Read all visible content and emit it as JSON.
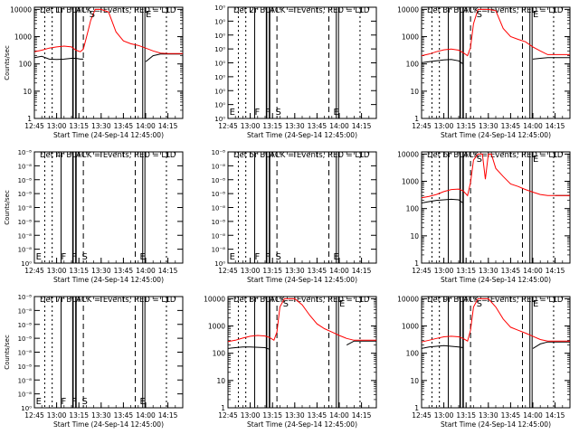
{
  "chart_data": [
    {
      "type": "line",
      "title": "Det 1r BLACK = Events, RED = LLD",
      "xlabel": "Start Time (24-Sep-14 12:45:00)",
      "ylabel": "Counts/sec",
      "xlim": [
        "12:45",
        "14:25"
      ],
      "ylim": [
        1,
        12000
      ],
      "log_y": true,
      "y_tick_labels": [
        "1",
        "10",
        "100",
        "1000",
        "10000"
      ],
      "x_tick_labels": [
        "12:45",
        "13:00",
        "13:15",
        "13:30",
        "13:45",
        "14:00",
        "14:15"
      ],
      "has_data": true,
      "x": [
        "12:45",
        "12:50",
        "12:55",
        "13:00",
        "13:05",
        "13:10",
        "13:13",
        "13:16",
        "13:18",
        "13:20",
        "13:23",
        "13:26",
        "13:30",
        "13:35",
        "13:40",
        "13:45",
        "13:50",
        "13:55",
        "14:00",
        "14:05",
        "14:10",
        "14:15",
        "14:20",
        "14:25"
      ],
      "series": [
        {
          "color": "#000000",
          "values": [
            170,
            190,
            150,
            145,
            150,
            160,
            160,
            150,
            150,
            null,
            null,
            null,
            null,
            null,
            null,
            null,
            null,
            null,
            120,
            200,
            230,
            230,
            230,
            230
          ]
        },
        {
          "color": "#ff0000",
          "values": [
            280,
            320,
            380,
            420,
            450,
            420,
            320,
            280,
            350,
            900,
            4000,
            10000,
            10000,
            8000,
            1500,
            700,
            550,
            480,
            380,
            300,
            250,
            240,
            240,
            240
          ]
        }
      ],
      "annotations": [
        {
          "text": "S",
          "x": "13:22"
        },
        {
          "text": "E",
          "x": "14:00"
        }
      ]
    },
    {
      "type": "line",
      "title": "Det 2r BLACK = Events, RED = LLD",
      "xlabel": "Start Time (24-Sep-14 12:45:00)",
      "ylabel": "",
      "xlim": [
        "12:45",
        "14:25"
      ],
      "ylim": [
        1,
        12000
      ],
      "log_y": true,
      "y_tick_labels": [
        "10⁰",
        "10⁰",
        "10⁰",
        "10⁰",
        "10⁰",
        "10⁰",
        "10⁰",
        "10⁰",
        "10⁰"
      ],
      "x_tick_labels": [
        "12:45",
        "13:00",
        "13:15",
        "13:30",
        "13:45",
        "14:00",
        "14:15"
      ],
      "has_data": false,
      "annotations": [
        {
          "text": "E",
          "x": "12:46"
        },
        {
          "text": "F",
          "x": "13:03"
        },
        {
          "text": "F",
          "x": "13:10"
        },
        {
          "text": "S",
          "x": "13:17"
        },
        {
          "text": "E",
          "x": "13:56"
        }
      ]
    },
    {
      "type": "line",
      "title": "Det 3r BLACK = Events, RED = LLD",
      "xlabel": "Start Time (24-Sep-14 12:45:00)",
      "ylabel": "",
      "xlim": [
        "12:45",
        "14:25"
      ],
      "ylim": [
        1,
        12000
      ],
      "log_y": true,
      "y_tick_labels": [
        "1",
        "10",
        "100",
        "1000",
        "10000"
      ],
      "x_tick_labels": [
        "12:45",
        "13:00",
        "13:15",
        "13:30",
        "13:45",
        "14:00",
        "14:15"
      ],
      "has_data": true,
      "x": [
        "12:45",
        "12:50",
        "12:55",
        "13:00",
        "13:05",
        "13:10",
        "13:13",
        "13:16",
        "13:18",
        "13:20",
        "13:23",
        "13:26",
        "13:30",
        "13:35",
        "13:40",
        "13:45",
        "13:50",
        "13:55",
        "14:00",
        "14:05",
        "14:10",
        "14:15",
        "14:20",
        "14:25"
      ],
      "series": [
        {
          "color": "#000000",
          "values": [
            110,
            120,
            130,
            140,
            145,
            130,
            100,
            null,
            null,
            null,
            null,
            null,
            null,
            null,
            null,
            null,
            null,
            null,
            150,
            160,
            170,
            170,
            170,
            170
          ]
        },
        {
          "color": "#ff0000",
          "values": [
            200,
            230,
            280,
            330,
            350,
            320,
            260,
            200,
            400,
            3000,
            10000,
            10000,
            10000,
            9000,
            2000,
            1000,
            800,
            650,
            420,
            300,
            220,
            220,
            220,
            220
          ]
        }
      ],
      "annotations": [
        {
          "text": "S",
          "x": "13:22"
        },
        {
          "text": "E",
          "x": "14:00"
        }
      ]
    },
    {
      "type": "line",
      "title": "Det 4r BLACK = Events, RED = LLD",
      "xlabel": "Start Time (24-Sep-14 12:45:00)",
      "ylabel": "Counts/sec",
      "xlim": [
        "12:45",
        "14:25"
      ],
      "ylim": [
        1,
        12000
      ],
      "log_y": true,
      "y_tick_labels": [
        "10⁰",
        "10⁻⁸",
        "10⁻⁸",
        "10⁻⁸",
        "10⁻⁸",
        "10⁻⁸",
        "10⁻⁸",
        "10⁻⁸",
        "10⁻⁸"
      ],
      "x_tick_labels": [
        "12:45",
        "13:00",
        "13:15",
        "13:30",
        "13:45",
        "14:00",
        "14:15"
      ],
      "has_data": false,
      "annotations": [
        {
          "text": "E",
          "x": "12:46"
        },
        {
          "text": "F",
          "x": "13:03"
        },
        {
          "text": "F",
          "x": "13:10"
        },
        {
          "text": "S",
          "x": "13:17"
        },
        {
          "text": "E",
          "x": "13:56"
        }
      ]
    },
    {
      "type": "line",
      "title": "Det 5r BLACK = Events, RED = LLD",
      "xlabel": "Start Time (24-Sep-14 12:45:00)",
      "ylabel": "",
      "xlim": [
        "12:45",
        "14:25"
      ],
      "ylim": [
        1,
        12000
      ],
      "log_y": true,
      "y_tick_labels": [
        "10⁰",
        "10⁻⁸",
        "10⁻⁸",
        "10⁻⁸",
        "10⁻⁸",
        "10⁻⁸",
        "10⁻⁸",
        "10⁻⁸",
        "10⁻⁸"
      ],
      "x_tick_labels": [
        "12:45",
        "13:00",
        "13:15",
        "13:30",
        "13:45",
        "14:00",
        "14:15"
      ],
      "has_data": false,
      "annotations": [
        {
          "text": "E",
          "x": "12:46"
        },
        {
          "text": "F",
          "x": "13:03"
        },
        {
          "text": "F",
          "x": "13:10"
        },
        {
          "text": "S",
          "x": "13:17"
        },
        {
          "text": "E",
          "x": "13:56"
        }
      ]
    },
    {
      "type": "line",
      "title": "Det 6r BLACK = Events, RED = LLD",
      "xlabel": "Start Time (24-Sep-14 12:45:00)",
      "ylabel": "",
      "xlim": [
        "12:45",
        "14:25"
      ],
      "ylim": [
        1,
        12000
      ],
      "log_y": true,
      "y_tick_labels": [
        "1",
        "10",
        "100",
        "1000",
        "10000"
      ],
      "x_tick_labels": [
        "12:45",
        "13:00",
        "13:15",
        "13:30",
        "13:45",
        "14:00",
        "14:15"
      ],
      "has_data": true,
      "x": [
        "12:45",
        "12:50",
        "12:55",
        "13:00",
        "13:05",
        "13:10",
        "13:13",
        "13:16",
        "13:18",
        "13:20",
        "13:23",
        "13:26",
        "13:28",
        "13:30",
        "13:32",
        "13:35",
        "13:40",
        "13:45",
        "13:50",
        "13:55",
        "14:00",
        "14:05",
        "14:10",
        "14:15",
        "14:20",
        "14:25"
      ],
      "series": [
        {
          "color": "#000000",
          "values": [
            160,
            180,
            200,
            210,
            220,
            210,
            160,
            null,
            null,
            null,
            null,
            null,
            null,
            null,
            null,
            null,
            null,
            null,
            null,
            null,
            null,
            null,
            null,
            300,
            300,
            300
          ]
        },
        {
          "color": "#ff0000",
          "values": [
            250,
            280,
            330,
            420,
            500,
            520,
            450,
            300,
            900,
            6000,
            10000,
            10000,
            1200,
            10000,
            10000,
            3000,
            1500,
            800,
            650,
            500,
            400,
            330,
            300,
            300,
            300,
            300
          ]
        }
      ],
      "annotations": [
        {
          "text": "S",
          "x": "13:22"
        },
        {
          "text": "E",
          "x": "14:00"
        }
      ]
    },
    {
      "type": "line",
      "title": "Det 7r BLACK = Events, RED = LLD",
      "xlabel": "Start Time (24-Sep-14 12:45:00)",
      "ylabel": "Counts/sec",
      "xlim": [
        "12:45",
        "14:25"
      ],
      "ylim": [
        1,
        12000
      ],
      "log_y": true,
      "y_tick_labels": [
        "10⁰",
        "10⁻⁸",
        "10⁻⁸",
        "10⁻⁸",
        "10⁻⁸",
        "10⁻⁸",
        "10⁻⁸",
        "10⁻⁸",
        "10⁻⁸"
      ],
      "x_tick_labels": [
        "12:45",
        "13:00",
        "13:15",
        "13:30",
        "13:45",
        "14:00",
        "14:15"
      ],
      "has_data": false,
      "annotations": [
        {
          "text": "E",
          "x": "12:46"
        },
        {
          "text": "F",
          "x": "13:03"
        },
        {
          "text": "F",
          "x": "13:10"
        },
        {
          "text": "S",
          "x": "13:17"
        },
        {
          "text": "E",
          "x": "13:56"
        }
      ]
    },
    {
      "type": "line",
      "title": "Det 8r BLACK = Events, RED = LLD",
      "xlabel": "Start Time (24-Sep-14 12:45:00)",
      "ylabel": "",
      "xlim": [
        "12:45",
        "14:25"
      ],
      "ylim": [
        1,
        12000
      ],
      "log_y": true,
      "y_tick_labels": [
        "1",
        "10",
        "100",
        "1000",
        "10000"
      ],
      "x_tick_labels": [
        "12:45",
        "13:00",
        "13:15",
        "13:30",
        "13:45",
        "14:00",
        "14:15"
      ],
      "has_data": true,
      "x": [
        "12:45",
        "12:50",
        "12:55",
        "13:00",
        "13:05",
        "13:10",
        "13:13",
        "13:16",
        "13:18",
        "13:20",
        "13:23",
        "13:26",
        "13:30",
        "13:35",
        "13:40",
        "13:45",
        "13:50",
        "13:55",
        "14:00",
        "14:05",
        "14:10",
        "14:15",
        "14:20",
        "14:25"
      ],
      "series": [
        {
          "color": "#000000",
          "values": [
            150,
            160,
            170,
            170,
            165,
            160,
            140,
            null,
            null,
            null,
            null,
            null,
            null,
            null,
            null,
            null,
            null,
            null,
            null,
            200,
            280,
            280,
            280,
            280
          ]
        },
        {
          "color": "#ff0000",
          "values": [
            270,
            300,
            360,
            420,
            450,
            430,
            380,
            300,
            600,
            5000,
            10000,
            10000,
            10000,
            6000,
            2500,
            1200,
            800,
            600,
            450,
            350,
            300,
            300,
            300,
            300
          ]
        }
      ],
      "annotations": [
        {
          "text": "S",
          "x": "13:22"
        },
        {
          "text": "E",
          "x": "14:00"
        }
      ]
    },
    {
      "type": "line",
      "title": "Det 9r BLACK = Events, RED = LLD",
      "xlabel": "Start Time (24-Sep-14 12:45:00)",
      "ylabel": "",
      "xlim": [
        "12:45",
        "14:25"
      ],
      "ylim": [
        1,
        12000
      ],
      "log_y": true,
      "y_tick_labels": [
        "1",
        "10",
        "100",
        "1000",
        "10000"
      ],
      "x_tick_labels": [
        "12:45",
        "13:00",
        "13:15",
        "13:30",
        "13:45",
        "14:00",
        "14:15"
      ],
      "has_data": true,
      "x": [
        "12:45",
        "12:50",
        "12:55",
        "13:00",
        "13:05",
        "13:10",
        "13:13",
        "13:16",
        "13:18",
        "13:20",
        "13:23",
        "13:26",
        "13:30",
        "13:35",
        "13:40",
        "13:45",
        "13:50",
        "13:55",
        "14:00",
        "14:05",
        "14:10",
        "14:15",
        "14:20",
        "14:25"
      ],
      "series": [
        {
          "color": "#000000",
          "values": [
            150,
            170,
            180,
            190,
            180,
            170,
            160,
            null,
            null,
            null,
            null,
            null,
            null,
            null,
            null,
            null,
            null,
            null,
            150,
            220,
            260,
            260,
            260,
            260
          ]
        },
        {
          "color": "#ff0000",
          "values": [
            260,
            300,
            350,
            400,
            420,
            400,
            350,
            280,
            700,
            5000,
            10000,
            10000,
            10000,
            5000,
            1800,
            900,
            700,
            550,
            420,
            320,
            280,
            280,
            280,
            280
          ]
        }
      ],
      "annotations": [
        {
          "text": "S",
          "x": "13:22"
        },
        {
          "text": "E",
          "x": "14:00"
        }
      ]
    }
  ]
}
